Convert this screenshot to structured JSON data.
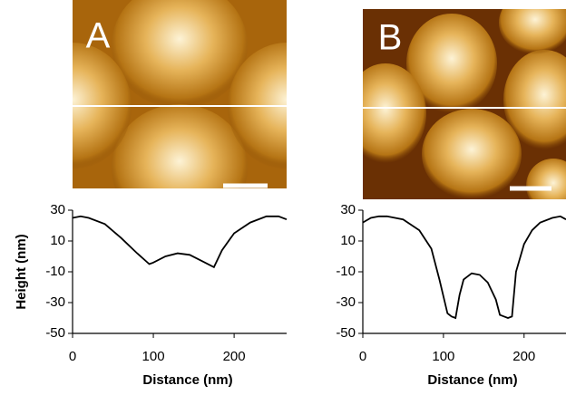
{
  "chart_data": [
    {
      "type": "line",
      "panel": "A",
      "y_label": "Height (nm)",
      "x_label": "Distance (nm)",
      "color": "#000000",
      "x": [
        0,
        10,
        20,
        40,
        60,
        80,
        95,
        100,
        115,
        130,
        145,
        160,
        175,
        185,
        200,
        220,
        240,
        255,
        265
      ],
      "values": [
        25,
        26,
        25,
        21,
        12,
        2,
        -5,
        -4,
        0,
        2,
        1,
        -3,
        -7,
        4,
        15,
        22,
        26,
        26,
        24
      ],
      "xlim": [
        0,
        265
      ],
      "ylim": [
        -50,
        30
      ],
      "xticks": [
        0,
        100,
        200
      ],
      "yticks": [
        30,
        10,
        -10,
        -30,
        -50
      ]
    },
    {
      "type": "line",
      "panel": "B",
      "x_label": "Distance (nm)",
      "color": "#000000",
      "x": [
        0,
        10,
        20,
        30,
        50,
        70,
        85,
        95,
        105,
        110,
        115,
        120,
        125,
        135,
        145,
        155,
        165,
        170,
        175,
        180,
        185,
        190,
        200,
        210,
        220,
        235,
        245,
        252
      ],
      "values": [
        22,
        25,
        26,
        26,
        24,
        17,
        5,
        -15,
        -37,
        -39,
        -40,
        -25,
        -15,
        -11,
        -12,
        -17,
        -28,
        -38,
        -39,
        -40,
        -39,
        -10,
        8,
        17,
        22,
        25,
        26,
        24
      ],
      "xlim": [
        0,
        252
      ],
      "ylim": [
        -50,
        30
      ],
      "xticks": [
        0,
        100,
        200
      ],
      "yticks": [
        30,
        10,
        -10,
        -30,
        -50
      ]
    }
  ]
}
